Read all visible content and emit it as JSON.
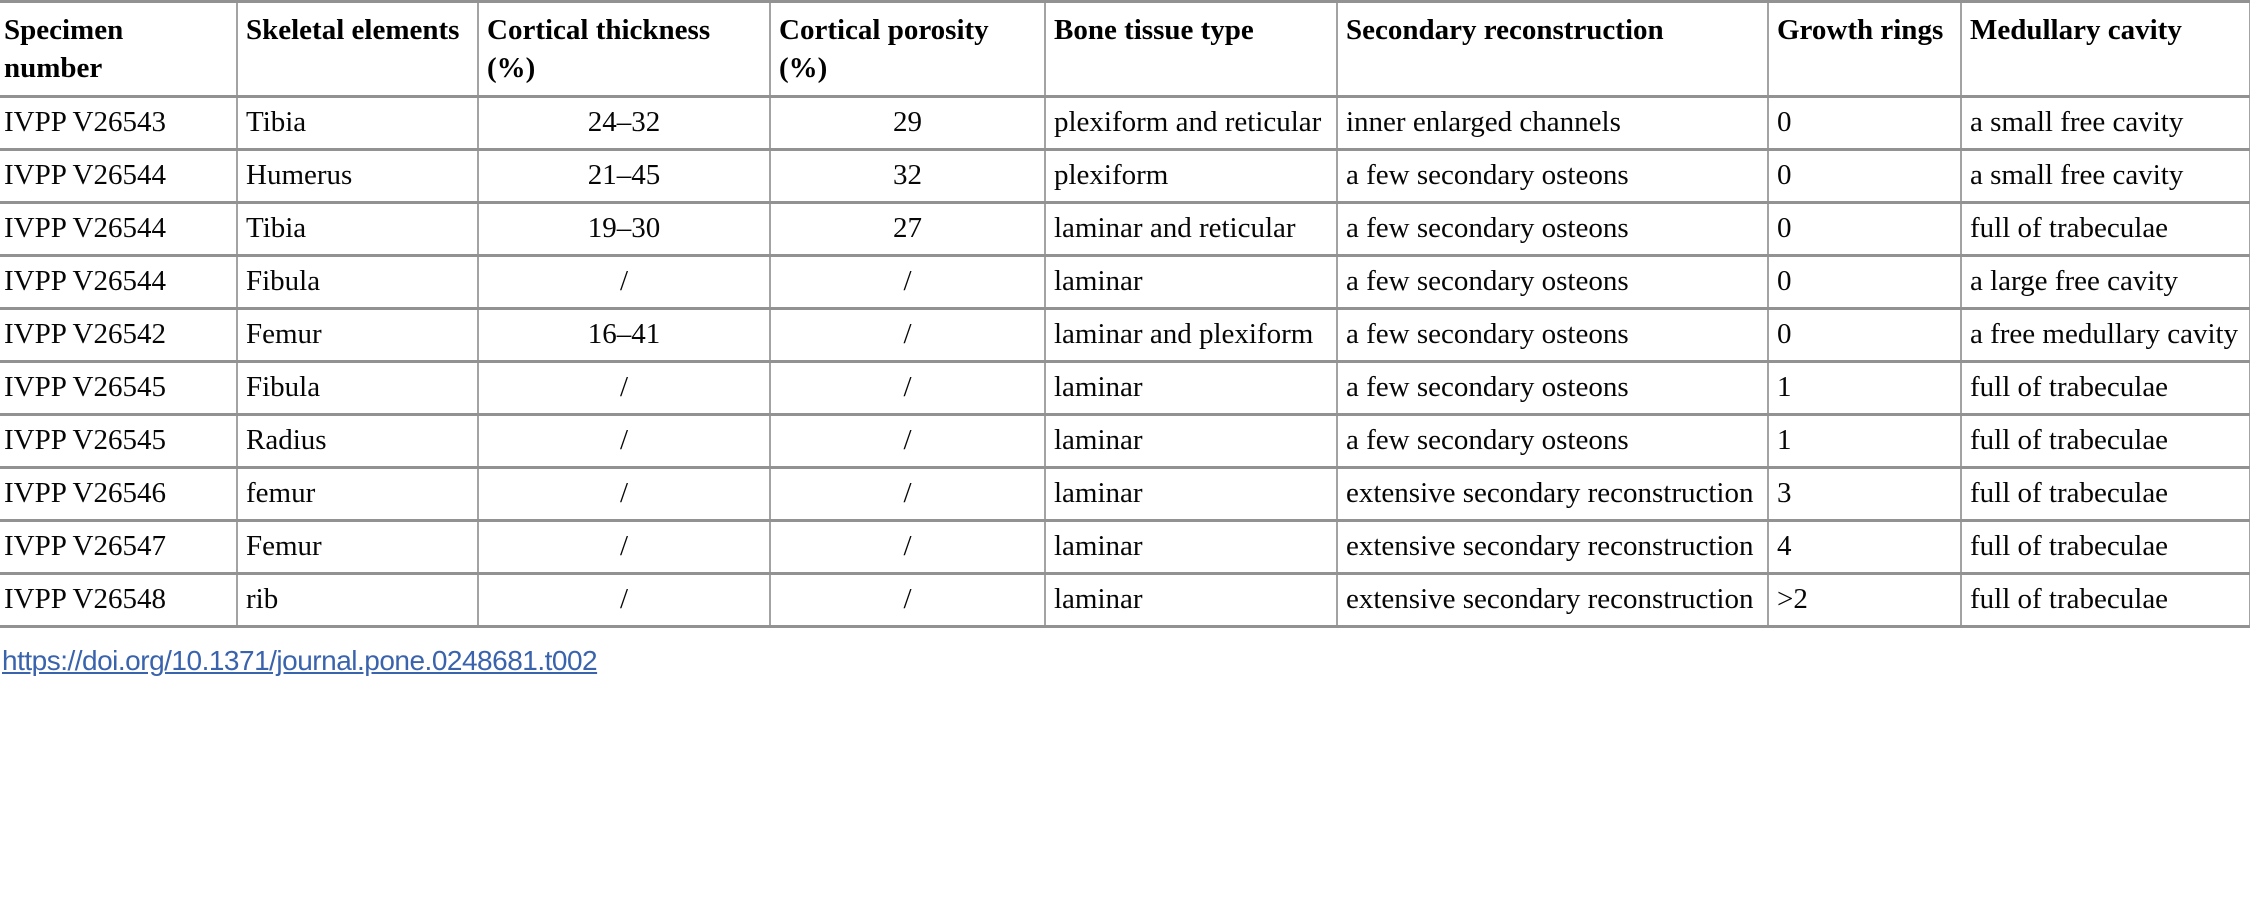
{
  "table": {
    "headers": [
      "Specimen number",
      "Skeletal elements",
      "Cortical thickness (%)",
      "Cortical porosity (%)",
      "Bone tissue type",
      "Secondary reconstruction",
      "Growth rings",
      "Medullary cavity"
    ],
    "body_align": [
      "left",
      "left",
      "center",
      "center",
      "left",
      "left",
      "left",
      "left"
    ],
    "rows": [
      [
        "IVPP V26543",
        "Tibia",
        "24–32",
        "29",
        "plexiform and reticular",
        "inner enlarged channels",
        "0",
        "a small free cavity"
      ],
      [
        "IVPP V26544",
        "Humerus",
        "21–45",
        "32",
        "plexiform",
        "a few secondary osteons",
        "0",
        "a small free cavity"
      ],
      [
        "IVPP V26544",
        "Tibia",
        "19–30",
        "27",
        "laminar and reticular",
        "a few secondary osteons",
        "0",
        "full of trabeculae"
      ],
      [
        "IVPP V26544",
        "Fibula",
        "/",
        "/",
        "laminar",
        "a few secondary osteons",
        "0",
        "a large free cavity"
      ],
      [
        "IVPP V26542",
        "Femur",
        "16–41",
        "/",
        "laminar and plexiform",
        "a few secondary osteons",
        "0",
        "a free medullary cavity"
      ],
      [
        "IVPP V26545",
        "Fibula",
        "/",
        "/",
        "laminar",
        "a few secondary osteons",
        "1",
        "full of trabeculae"
      ],
      [
        "IVPP V26545",
        "Radius",
        "/",
        "/",
        "laminar",
        "a few secondary osteons",
        "1",
        "full of trabeculae"
      ],
      [
        "IVPP V26546",
        "femur",
        "/",
        "/",
        "laminar",
        "extensive secondary reconstruction",
        "3",
        "full of trabeculae"
      ],
      [
        "IVPP V26547",
        "Femur",
        "/",
        "/",
        "laminar",
        "extensive secondary reconstruction",
        "4",
        "full of trabeculae"
      ],
      [
        "IVPP V26548",
        "rib",
        "/",
        "/",
        "laminar",
        "extensive secondary reconstruction",
        ">2",
        "full of trabeculae"
      ]
    ]
  },
  "footer": {
    "doi_link": "https://doi.org/10.1371/journal.pone.0248681.t002"
  },
  "colors": {
    "border_horizontal": "#929292",
    "border_vertical": "#a3a3a3",
    "link": "#3a63ad",
    "text": "#060606"
  }
}
